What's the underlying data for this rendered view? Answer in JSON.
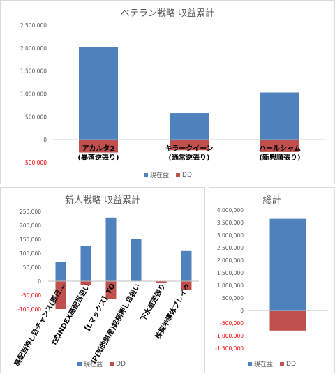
{
  "colors": {
    "profit": "#4f81bd",
    "dd": "#c0504d",
    "axis": "#bfbfbf",
    "tick": "#595959",
    "tick_negative": "#ff0000"
  },
  "chart_data": [
    {
      "type": "bar",
      "title": "ベテラン戦略 収益累計",
      "categories": [
        "アカルタ2\n(暴落逆張り)",
        "キラークイーン\n(通常逆張り)",
        "ハールシャム\n(新興順張り)"
      ],
      "series": [
        {
          "name": "現在益",
          "values": [
            2020000,
            580000,
            1030000
          ]
        },
        {
          "name": "DD",
          "values": [
            -280000,
            -230000,
            -270000
          ]
        }
      ],
      "ylim": [
        -500000,
        2500000
      ],
      "yticks": [
        "2,500,000",
        "2,000,000",
        "1,500,000",
        "1,000,000",
        "500,000",
        "0",
        "-500,000"
      ],
      "grid": false,
      "legend": "bottom"
    },
    {
      "type": "bar",
      "title": "新人戦略 収益累計",
      "categories": [
        "高配当押し目チャンス(要日…",
        "f式INDEX高配当狙い",
        "【Lマックス】TO",
        "IP(知的財産)銘柄押し目狙い",
        "下水道逆張り",
        "株探半導体ブレイク"
      ],
      "series": [
        {
          "name": "現在益",
          "values": [
            70000,
            125000,
            228000,
            152000,
            0,
            108000
          ]
        },
        {
          "name": "DD",
          "values": [
            -100000,
            -15000,
            -65000,
            0,
            -5000,
            -32000
          ]
        }
      ],
      "ylim": [
        -100000,
        250000
      ],
      "yticks": [
        "250,000",
        "200,000",
        "150,000",
        "100,000",
        "50,000",
        "0",
        "-50,000",
        "-100,000"
      ],
      "grid": false,
      "legend": "bottom"
    },
    {
      "type": "bar",
      "title": "総計",
      "categories": [
        ""
      ],
      "series": [
        {
          "name": "現在益",
          "values": [
            3650000
          ]
        },
        {
          "name": "DD",
          "values": [
            -800000
          ]
        }
      ],
      "ylim": [
        -1500000,
        4000000
      ],
      "yticks": [
        "4,000,000",
        "3,500,000",
        "3,000,000",
        "2,500,000",
        "2,000,000",
        "1,500,000",
        "1,000,000",
        "500,000",
        "0",
        "-500,000",
        "-1,000,000",
        "-1,500,000"
      ],
      "grid": false,
      "legend": "bottom"
    }
  ]
}
